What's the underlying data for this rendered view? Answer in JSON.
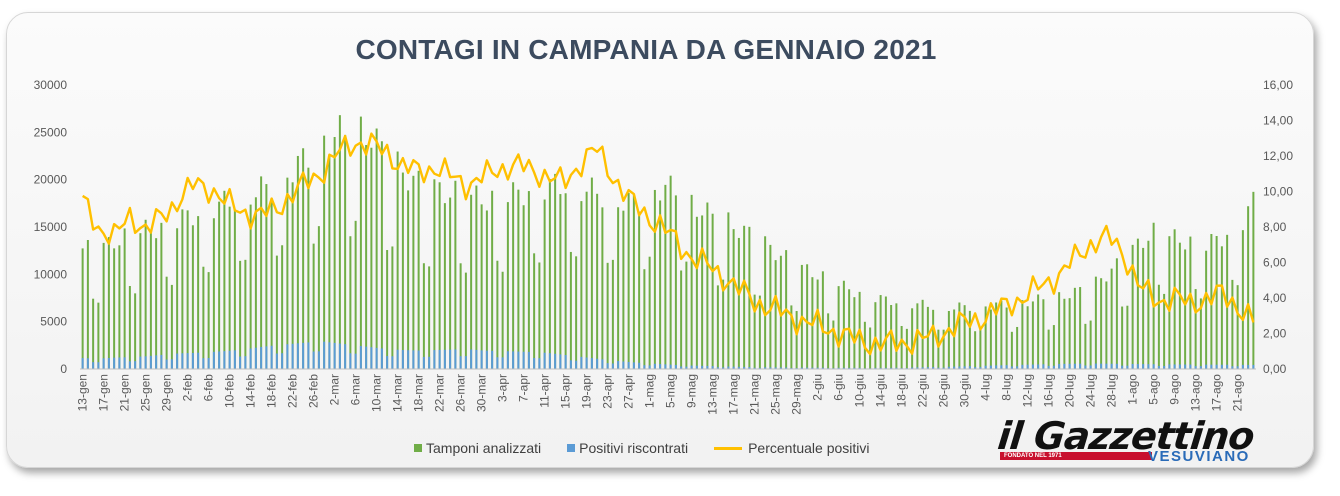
{
  "chart_data": {
    "type": "bar+line",
    "title": "CONTAGI IN CAMPANIA DA GENNAIO 2021",
    "y_left_ticks": [
      "0",
      "5000",
      "10000",
      "15000",
      "20000",
      "25000",
      "30000"
    ],
    "y_left_range": [
      0,
      30000
    ],
    "y_right_ticks": [
      "0,00",
      "2,00",
      "4,00",
      "6,00",
      "8,00",
      "10,00",
      "12,00",
      "14,00",
      "16,00"
    ],
    "y_right_range": [
      0,
      16
    ],
    "x_tick_labels": [
      "13-gen",
      "17-gen",
      "21-gen",
      "25-gen",
      "29-gen",
      "2-feb",
      "6-feb",
      "10-feb",
      "14-feb",
      "18-feb",
      "22-feb",
      "26-feb",
      "2-mar",
      "6-mar",
      "10-mar",
      "14-mar",
      "18-mar",
      "22-mar",
      "26-mar",
      "30-mar",
      "3-apr",
      "7-apr",
      "11-apr",
      "15-apr",
      "19-apr",
      "23-apr",
      "27-apr",
      "1-mag",
      "5-mag",
      "9-mag",
      "13-mag",
      "17-mag",
      "21-mag",
      "25-mag",
      "29-mag",
      "2-giu",
      "6-giu",
      "10-giu",
      "14-giu",
      "18-giu",
      "22-giu",
      "26-giu",
      "30-giu",
      "4-lug",
      "8-lug",
      "12-lug",
      "16-lug",
      "20-lug",
      "24-lug",
      "28-lug",
      "1-ago",
      "5-ago",
      "9-ago",
      "13-ago",
      "17-ago",
      "21-ago"
    ],
    "days_per_tick": 4,
    "grid": false,
    "legend_position": "bottom",
    "series": [
      {
        "name": "Tamponi analizzati",
        "axis": "left",
        "kind": "bar",
        "color": "#70ad47",
        "anchors": [
          13700,
          13500,
          14500,
          15300,
          15800,
          16200,
          17000,
          17600,
          18400,
          19000,
          19600,
          20300,
          21200,
          22600,
          24100,
          25800,
          26800,
          27200,
          26500,
          24200,
          22300,
          21000,
          20400,
          20000,
          19700,
          19200,
          19500,
          19900,
          20300,
          20800,
          21000,
          20600,
          20100,
          19400,
          18900,
          19300,
          20700,
          20400,
          18800,
          17600,
          16800,
          15900,
          14800,
          13600,
          12400,
          11300,
          10600,
          9700,
          8900,
          8200,
          7900,
          7600,
          7400,
          7200,
          7000,
          7100,
          7200,
          7300,
          7400,
          7700,
          8000,
          8200,
          8800,
          9500,
          11000,
          12500,
          14500,
          15800,
          14800,
          14500,
          14000,
          15000,
          16000,
          18900
        ]
      },
      {
        "name": "Positivi riscontrati",
        "axis": "left",
        "kind": "bar",
        "color": "#5b9bd5",
        "anchors": [
          1150,
          1100,
          1200,
          1250,
          1350,
          1500,
          1650,
          1700,
          1800,
          1900,
          2050,
          2300,
          2500,
          2650,
          2800,
          2900,
          2700,
          2500,
          2300,
          2100,
          2000,
          1950,
          2000,
          2050,
          2100,
          1950,
          1900,
          1850,
          1800,
          1700,
          1500,
          1300,
          1100,
          900,
          750,
          620,
          520,
          430,
          360,
          320,
          270,
          230,
          200,
          175,
          160,
          150,
          140,
          130,
          125,
          120,
          120,
          140,
          170,
          200,
          240,
          280,
          330,
          380,
          420,
          460,
          500,
          540,
          560,
          580,
          560,
          540,
          520,
          500,
          480,
          470,
          460,
          450,
          440,
          430
        ]
      },
      {
        "name": "Percentuale positivi",
        "axis": "right",
        "kind": "line",
        "color": "#ffc000",
        "anchors": [
          9.4,
          8.0,
          7.4,
          8.7,
          7.8,
          8.6,
          9.6,
          10.4,
          10.2,
          9.3,
          8.9,
          8.6,
          9.0,
          9.8,
          10.5,
          11.2,
          12.2,
          12.8,
          12.6,
          12.2,
          11.4,
          11.1,
          11.4,
          10.8,
          10.4,
          10.8,
          11.3,
          11.5,
          11.2,
          10.9,
          10.4,
          11.6,
          12.4,
          11.0,
          9.6,
          8.8,
          8.1,
          7.2,
          6.3,
          5.8,
          5.2,
          4.4,
          3.8,
          3.4,
          3.0,
          2.7,
          2.4,
          2.1,
          1.7,
          1.5,
          1.4,
          1.5,
          1.6,
          1.8,
          2.2,
          2.6,
          2.9,
          3.3,
          3.8,
          4.2,
          4.8,
          5.4,
          6.3,
          7.2,
          7.4,
          6.4,
          4.5,
          3.8,
          4.1,
          3.6,
          4.0,
          4.2,
          3.6,
          2.7
        ]
      }
    ]
  },
  "legend": {
    "tamponi": "Tamponi analizzati",
    "positivi": "Positivi riscontrati",
    "percentuale": "Percentuale positivi"
  },
  "logo": {
    "main": "il Gazzettino",
    "tagline": "FONDATO NEL 1971",
    "sub": "VESUVIANO"
  },
  "colors": {
    "tamponi": "#70ad47",
    "positivi": "#5b9bd5",
    "percentuale": "#ffc000",
    "title": "#3c4b5f"
  }
}
